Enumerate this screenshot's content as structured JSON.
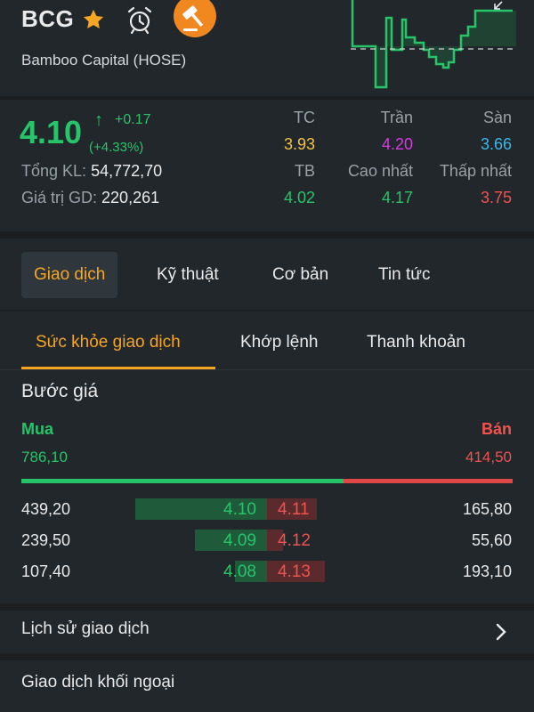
{
  "header": {
    "symbol": "BCG",
    "company": "Bamboo Capital (HOSE)",
    "icons": [
      "star-icon",
      "alarm-clock-icon",
      "auction-hammer-icon"
    ]
  },
  "price": {
    "last": "4.10",
    "change": "+0.17",
    "change_pct": "(+4.33%)",
    "volume_label": "Tổng KL:",
    "volume": "54,772,70",
    "value_label": "Giá trị GD:",
    "value": "220,261",
    "ref_label": "TC",
    "ref": "3.93",
    "ceil_label": "Trần",
    "ceil": "4.20",
    "floor_label": "Sàn",
    "floor": "3.66",
    "avg_label": "TB",
    "avg": "4.02",
    "high_label": "Cao nhất",
    "high": "4.17",
    "low_label": "Thấp nhất",
    "low": "3.75"
  },
  "tabs": [
    "Giao dịch",
    "Kỹ thuật",
    "Cơ bản",
    "Tin tức"
  ],
  "subtabs": [
    "Sức khỏe giao dịch",
    "Khớp lệnh",
    "Thanh khoản"
  ],
  "book": {
    "title": "Bước giá",
    "buy_label": "Mua",
    "sell_label": "Bán",
    "buy_total": "786,10",
    "sell_total": "414,50",
    "buy_ratio": 0.655,
    "rows": [
      {
        "bid_qty": "439,20",
        "bid_px": "4.10",
        "ask_px": "4.11",
        "ask_qty": "165,80",
        "bid_frac": 0.82,
        "ask_frac": 0.31
      },
      {
        "bid_qty": "239,50",
        "bid_px": "4.09",
        "ask_px": "4.12",
        "ask_qty": "55,60",
        "bid_frac": 0.45,
        "ask_frac": 0.1
      },
      {
        "bid_qty": "107,40",
        "bid_px": "4.08",
        "ask_px": "4.13",
        "ask_qty": "193,10",
        "bid_frac": 0.2,
        "ask_frac": 0.36
      }
    ]
  },
  "history_label": "Lịch sử giao dịch",
  "foreign_label": "Giao dịch khối ngoại",
  "colors": {
    "up": "#27c46a",
    "down": "#ef5350",
    "ref": "#f5c242",
    "ceil": "#d63ae0",
    "floor": "#3bb8e8",
    "accent": "#f5a623"
  }
}
